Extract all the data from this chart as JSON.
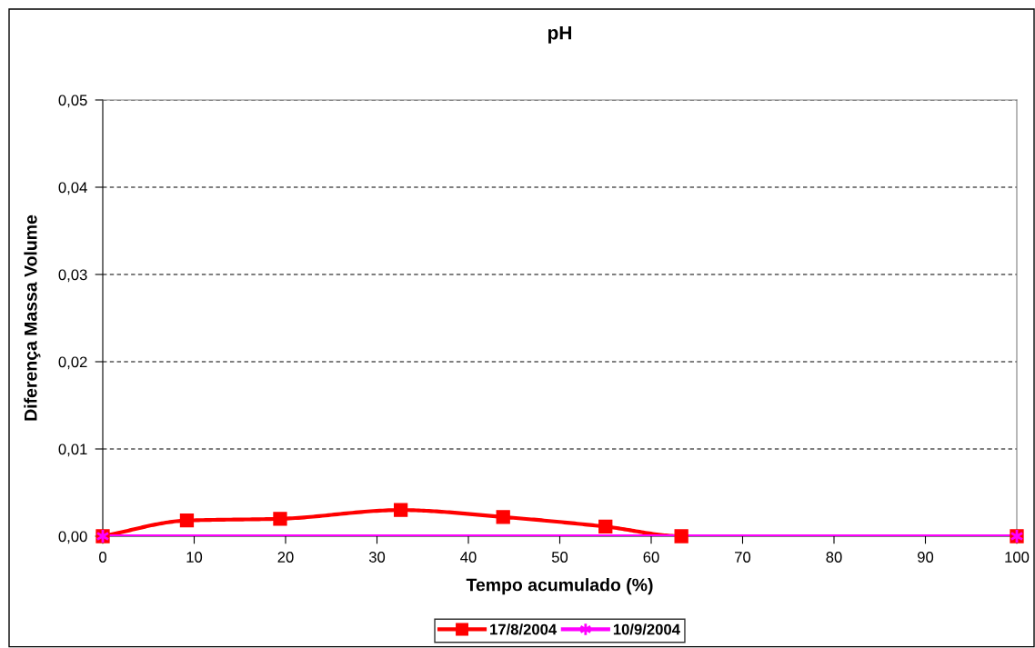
{
  "chart_data": {
    "type": "line",
    "title": "pH",
    "xlabel": "Tempo acumulado (%)",
    "ylabel": "Diferença Massa Volume",
    "series": [
      {
        "name": "17/8/2004",
        "color": "#ff0000",
        "marker": "square",
        "x": [
          0,
          9.2,
          19.4,
          32.6,
          43.8,
          55.0,
          63.3,
          100
        ],
        "values": [
          0,
          0.0018,
          0.002,
          0.003,
          0.0022,
          0.0011,
          0,
          0
        ]
      },
      {
        "name": "10/9/2004",
        "color": "#ff00ff",
        "marker": "cross",
        "x": [
          0,
          100
        ],
        "values": [
          0,
          0
        ]
      }
    ],
    "xlim": [
      0,
      100
    ],
    "xticks": [
      0,
      10,
      20,
      30,
      40,
      50,
      60,
      70,
      80,
      90,
      100
    ],
    "ylim": [
      0,
      0.05
    ],
    "yticks": [
      {
        "value": 0,
        "label": "0,00"
      },
      {
        "value": 0.01,
        "label": "0,01"
      },
      {
        "value": 0.02,
        "label": "0,02"
      },
      {
        "value": 0.03,
        "label": "0,03"
      },
      {
        "value": 0.04,
        "label": "0,04"
      },
      {
        "value": 0.05,
        "label": "0,05"
      }
    ],
    "grid": "y",
    "legend": "bottom",
    "line_style": "solid"
  }
}
